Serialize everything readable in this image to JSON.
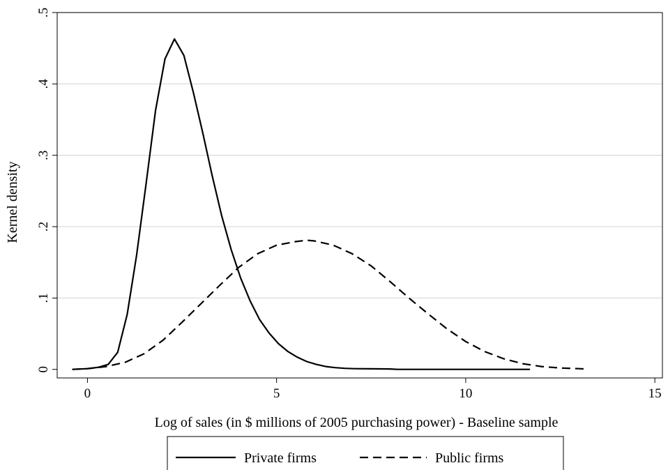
{
  "chart_data": {
    "type": "line",
    "title": "",
    "xlabel": "Log of sales (in $ millions of 2005 purchasing power) - Baseline sample",
    "ylabel": "Kernel density",
    "xlim": [
      -0.8,
      15.2
    ],
    "ylim": [
      -0.012,
      0.5
    ],
    "x_ticks": [
      0,
      5,
      10,
      15
    ],
    "x_tick_labels": [
      "0",
      "5",
      "10",
      "15"
    ],
    "y_ticks": [
      0,
      0.1,
      0.2,
      0.3,
      0.4,
      0.5
    ],
    "y_tick_labels": [
      "0",
      ".1",
      ".2",
      ".3",
      ".4",
      ".5"
    ],
    "grid": "horizontal",
    "legend_position": "bottom",
    "series": [
      {
        "name": "Private firms",
        "style": "solid",
        "color": "#000000",
        "x": [
          -0.4,
          0.0,
          0.3,
          0.55,
          0.8,
          1.05,
          1.3,
          1.55,
          1.8,
          2.05,
          2.3,
          2.55,
          2.8,
          3.05,
          3.3,
          3.55,
          3.8,
          4.05,
          4.3,
          4.55,
          4.8,
          5.05,
          5.3,
          5.55,
          5.8,
          6.05,
          6.3,
          6.55,
          6.8,
          7.05,
          7.5,
          8.0,
          8.2,
          9.0,
          10.0,
          11.0,
          11.7
        ],
        "y": [
          0.0,
          0.001,
          0.003,
          0.007,
          0.024,
          0.077,
          0.16,
          0.26,
          0.363,
          0.435,
          0.463,
          0.44,
          0.388,
          0.331,
          0.271,
          0.215,
          0.168,
          0.128,
          0.096,
          0.07,
          0.051,
          0.036,
          0.025,
          0.017,
          0.011,
          0.007,
          0.004,
          0.0025,
          0.0015,
          0.001,
          0.0008,
          0.0006,
          0.0,
          0.0,
          0.0,
          0.0,
          0.0
        ]
      },
      {
        "name": "Public firms",
        "style": "dashed",
        "color": "#000000",
        "x": [
          -0.4,
          0.0,
          0.5,
          1.0,
          1.5,
          2.0,
          2.5,
          3.0,
          3.5,
          4.0,
          4.5,
          5.0,
          5.5,
          5.8,
          6.0,
          6.5,
          7.0,
          7.5,
          8.0,
          8.5,
          9.0,
          9.5,
          10.0,
          10.5,
          11.0,
          11.5,
          12.0,
          12.5,
          13.0,
          13.2
        ],
        "y": [
          0.0,
          0.001,
          0.004,
          0.01,
          0.022,
          0.041,
          0.066,
          0.092,
          0.118,
          0.143,
          0.162,
          0.174,
          0.179,
          0.181,
          0.18,
          0.174,
          0.162,
          0.145,
          0.123,
          0.1,
          0.078,
          0.057,
          0.039,
          0.025,
          0.015,
          0.008,
          0.004,
          0.002,
          0.001,
          0.0005
        ]
      }
    ]
  }
}
